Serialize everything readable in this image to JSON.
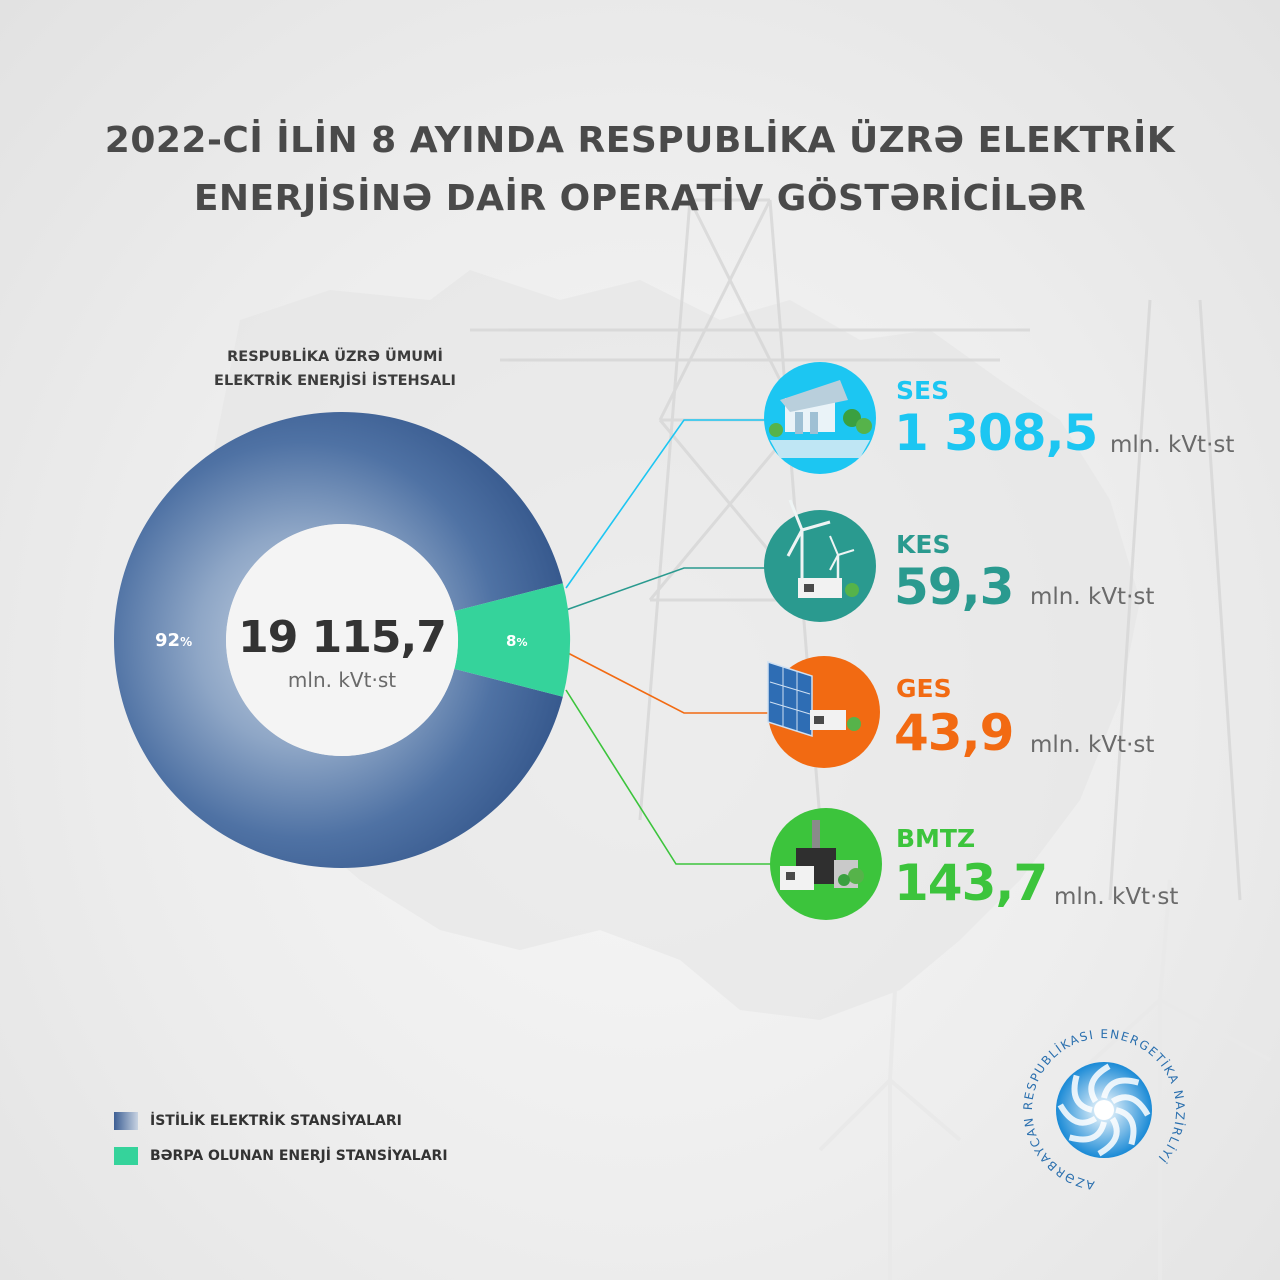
{
  "header": {
    "title_line1": "2022-Cİ İLİN 8 AYINDA RESPUBLİKA ÜZRƏ ELEKTRİK",
    "title_line2": "ENERJİSİNƏ DAİR OPERATİV GÖSTƏRİCİLƏR"
  },
  "donut": {
    "heading_line1": "RESPUBLİKA ÜZRƏ ÜMUMİ",
    "heading_line2": "ELEKTRİK ENERJİSİ İSTEHSALI",
    "total_value": "19 115,7",
    "total_unit": "mln. kVt·st",
    "pct_thermal": "92",
    "pct_renewable": "8",
    "pct_sign": "%"
  },
  "stations": [
    {
      "name": "SES",
      "value": "1 308,5",
      "unit": "mln. kVt·st",
      "color": "#1cc6f2",
      "icon": "hydro-dam-icon"
    },
    {
      "name": "KES",
      "value": "59,3",
      "unit": "mln. kVt·st",
      "color": "#2a9a8f",
      "icon": "wind-turbine-icon"
    },
    {
      "name": "GES",
      "value": "43,9",
      "unit": "mln. kVt·st",
      "color": "#f26a12",
      "icon": "solar-panel-icon"
    },
    {
      "name": "BMTZ",
      "value": "143,7",
      "unit": "mln. kVt·st",
      "color": "#3cc43c",
      "icon": "biomass-plant-icon"
    }
  ],
  "legend": [
    {
      "label": "İSTİLİK ELEKTRİK STANSİYALARI",
      "color": "#3d5f94"
    },
    {
      "label": "BƏRPA OLUNAN ENERJİ STANSİYALARI",
      "color": "#35d39b"
    }
  ],
  "logo": {
    "text": "AZƏRBAYCAN RESPUBLİKASI ENERGETİKA NAZİRLİYİ"
  },
  "chart_data": {
    "type": "pie",
    "categories": [
      "İSTİLİK ELEKTRİK STANSİYALARI",
      "BƏRPA OLUNAN ENERJİ STANSİYALARI"
    ],
    "values": [
      92,
      8
    ],
    "colors": [
      "#3d5f94",
      "#35d39b"
    ],
    "center_label": "19 115,7",
    "legend_position": "bottom-left"
  }
}
